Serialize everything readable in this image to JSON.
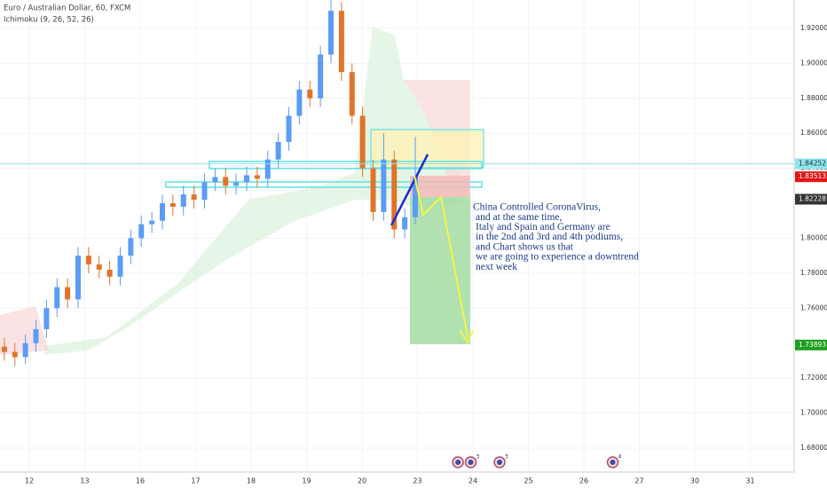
{
  "chart_data": {
    "type": "candlestick",
    "title": "Euro / Australian Dollar, 60, FXCM",
    "indicator": "Ichimoku (9, 26, 52, 26)",
    "up_color": "#5b9cf6",
    "down_color": "#e0742b",
    "x": [
      -0.45,
      -0.26,
      -0.07,
      0.12,
      0.31,
      0.5,
      0.69,
      0.88,
      1.07,
      1.26,
      1.45,
      1.64,
      1.83,
      2.02,
      2.21,
      2.4,
      2.59,
      2.78,
      2.97,
      3.16,
      3.35,
      3.54,
      3.73,
      3.92,
      4.11,
      4.3,
      4.49,
      4.68,
      4.87,
      5.06,
      5.25,
      5.44,
      5.63,
      5.82,
      6.01,
      6.2,
      6.39,
      6.58,
      6.77,
      6.96
    ],
    "open": [
      1.738,
      1.735,
      1.732,
      1.74,
      1.748,
      1.76,
      1.772,
      1.765,
      1.79,
      1.785,
      1.782,
      1.778,
      1.79,
      1.8,
      1.808,
      1.81,
      1.82,
      1.818,
      1.825,
      1.822,
      1.832,
      1.835,
      1.83,
      1.832,
      1.836,
      1.834,
      1.845,
      1.855,
      1.87,
      1.885,
      1.88,
      1.905,
      1.93,
      1.895,
      1.87,
      1.84,
      1.815,
      1.845,
      1.805,
      1.812
    ],
    "high": [
      1.743,
      1.74,
      1.745,
      1.753,
      1.765,
      1.777,
      1.777,
      1.795,
      1.795,
      1.79,
      1.787,
      1.795,
      1.805,
      1.813,
      1.815,
      1.825,
      1.825,
      1.83,
      1.83,
      1.837,
      1.84,
      1.84,
      1.837,
      1.841,
      1.841,
      1.85,
      1.86,
      1.875,
      1.89,
      1.89,
      1.91,
      1.94,
      1.935,
      1.9,
      1.875,
      1.845,
      1.86,
      1.85,
      1.817,
      1.858
    ],
    "low": [
      1.73,
      1.727,
      1.728,
      1.735,
      1.743,
      1.755,
      1.76,
      1.76,
      1.78,
      1.777,
      1.773,
      1.773,
      1.785,
      1.795,
      1.803,
      1.805,
      1.813,
      1.813,
      1.817,
      1.817,
      1.827,
      1.825,
      1.825,
      1.827,
      1.829,
      1.829,
      1.84,
      1.85,
      1.865,
      1.875,
      1.875,
      1.9,
      1.89,
      1.865,
      1.835,
      1.81,
      1.81,
      1.8,
      1.8,
      1.808
    ],
    "close": [
      1.735,
      1.732,
      1.74,
      1.748,
      1.76,
      1.772,
      1.765,
      1.79,
      1.785,
      1.782,
      1.778,
      1.79,
      1.8,
      1.808,
      1.81,
      1.82,
      1.818,
      1.825,
      1.822,
      1.832,
      1.835,
      1.83,
      1.832,
      1.836,
      1.834,
      1.845,
      1.855,
      1.87,
      1.885,
      1.88,
      1.905,
      1.93,
      1.895,
      1.87,
      1.84,
      1.815,
      1.845,
      1.805,
      1.812,
      1.835
    ],
    "xlim": [
      -0.528,
      13.792
    ],
    "ylim": [
      1.6663,
      1.9362
    ],
    "xticks": [
      {
        "value": 0,
        "label": "12"
      },
      {
        "value": 1,
        "label": "13"
      },
      {
        "value": 2,
        "label": "16"
      },
      {
        "value": 3,
        "label": "17"
      },
      {
        "value": 4,
        "label": "18"
      },
      {
        "value": 5,
        "label": "19"
      },
      {
        "value": 6,
        "label": "20"
      },
      {
        "value": 7,
        "label": "23"
      },
      {
        "value": 8,
        "label": "24"
      },
      {
        "value": 9,
        "label": "25"
      },
      {
        "value": 10,
        "label": "26"
      },
      {
        "value": 11,
        "label": "27"
      },
      {
        "value": 12,
        "label": "30"
      },
      {
        "value": 13,
        "label": "31"
      }
    ],
    "yticks": [
      {
        "value": 1.92,
        "label": "1.92000"
      },
      {
        "value": 1.9,
        "label": "1.90000"
      },
      {
        "value": 1.88,
        "label": "1.88000"
      },
      {
        "value": 1.86,
        "label": "1.86000"
      },
      {
        "value": 1.84,
        "label": "1.84000"
      },
      {
        "value": 1.8,
        "label": "1.80000"
      },
      {
        "value": 1.78,
        "label": "1.78000"
      },
      {
        "value": 1.76,
        "label": "1.76000"
      },
      {
        "value": 1.72,
        "label": "1.72000"
      },
      {
        "value": 1.7,
        "label": "1.70000"
      },
      {
        "value": 1.68,
        "label": "1.68000"
      }
    ],
    "price_labels": [
      {
        "value": 1.84252,
        "color": "#8fe3ea"
      },
      {
        "value": 1.83513,
        "color": "#e01818"
      },
      {
        "value": 1.82228,
        "color": "#333333"
      },
      {
        "value": 1.73893,
        "color": "#1e9e1e"
      }
    ],
    "annotation": [
      "China Controlled CoronaVirus,",
      "and at the same time,",
      "Italy and Spain and Germany are",
      "in the 2nd and 3rd and 4th podiums,",
      "and Chart shows us that",
      "we are going to experience a downtrend",
      "next week"
    ],
    "events": [
      {
        "x": 7.73
      },
      {
        "x": 7.96,
        "count": 3
      },
      {
        "x": 8.48,
        "count": 3
      },
      {
        "x": 10.52,
        "count": 4
      }
    ]
  }
}
